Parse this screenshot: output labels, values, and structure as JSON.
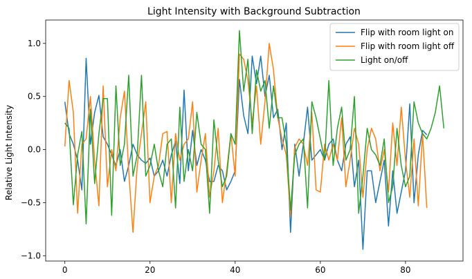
{
  "chart_data": {
    "type": "line",
    "title": "Light Intensity with Background Subtraction",
    "xlabel": "",
    "ylabel": "Relative Light Intensity",
    "xlim": [
      -4.5,
      93.5
    ],
    "ylim": [
      -1.05,
      1.22
    ],
    "xticks": [
      0,
      20,
      40,
      60,
      80
    ],
    "yticks": [
      -1.0,
      -0.5,
      0.0,
      0.5,
      1.0
    ],
    "ytick_labels": [
      "−1.0",
      "−0.5",
      "0.0",
      "0.5",
      "1.0"
    ],
    "grid": false,
    "legend_position": "top-right",
    "series": [
      {
        "name": "Flip with room light on",
        "color": "#1f77b4",
        "x": [
          0,
          1,
          2,
          3,
          4,
          5,
          6,
          7,
          8,
          9,
          10,
          11,
          12,
          13,
          14,
          15,
          16,
          17,
          18,
          19,
          20,
          21,
          22,
          23,
          24,
          25,
          26,
          27,
          28,
          29,
          30,
          31,
          32,
          33,
          34,
          35,
          36,
          37,
          38,
          39,
          40,
          41,
          42,
          43,
          44,
          45,
          46,
          47,
          48,
          49,
          50,
          51,
          52,
          53,
          54,
          55,
          56,
          57,
          58,
          59,
          60,
          61,
          62,
          63,
          64,
          65,
          66,
          67,
          68,
          69,
          70,
          71,
          72,
          73,
          74,
          75,
          76,
          77,
          78,
          79,
          80,
          81,
          82,
          83,
          84,
          85
        ],
        "values": [
          0.45,
          0.15,
          0.05,
          -0.1,
          -0.38,
          0.86,
          0.05,
          0.35,
          0.51,
          0.12,
          0.05,
          -0.05,
          -0.15,
          0.0,
          -0.3,
          -0.15,
          0.05,
          -0.05,
          -0.1,
          -0.13,
          -0.08,
          -0.25,
          -0.2,
          -0.1,
          -0.25,
          -0.05,
          0.08,
          -0.32,
          0.56,
          -0.2,
          0.18,
          -0.15,
          0.0,
          -0.1,
          -0.3,
          -0.3,
          -0.15,
          -0.2,
          -0.38,
          -0.3,
          -0.2,
          0.66,
          0.32,
          0.15,
          0.88,
          0.62,
          0.88,
          0.5,
          0.7,
          0.3,
          0.38,
          0.0,
          0.25,
          -0.78,
          0.05,
          -0.25,
          0.05,
          0.4,
          -0.1,
          -0.05,
          0.0,
          -0.1,
          0.05,
          0.1,
          -0.1,
          -0.2,
          0.05,
          0.12,
          -0.35,
          -0.1,
          -0.94,
          -0.2,
          -0.2,
          -0.5,
          -0.3,
          -0.1,
          -0.72,
          -0.2,
          -0.6,
          -0.4,
          -0.2,
          0.43,
          -0.5,
          -0.05,
          0.18,
          0.14
        ]
      },
      {
        "name": "Flip with room light off",
        "color": "#ff7f0e",
        "x": [
          0,
          1,
          2,
          3,
          4,
          5,
          6,
          7,
          8,
          9,
          10,
          11,
          12,
          13,
          14,
          15,
          16,
          17,
          18,
          19,
          20,
          21,
          22,
          23,
          24,
          25,
          26,
          27,
          28,
          29,
          30,
          31,
          32,
          33,
          34,
          35,
          36,
          37,
          38,
          39,
          40,
          41,
          42,
          43,
          44,
          45,
          46,
          47,
          48,
          49,
          50,
          51,
          52,
          53,
          54,
          55,
          56,
          57,
          58,
          59,
          60,
          61,
          62,
          63,
          64,
          65,
          66,
          67,
          68,
          69,
          70,
          71,
          72,
          73,
          74,
          75,
          76,
          77,
          78,
          79,
          80,
          81,
          82,
          83,
          84,
          85
        ],
        "values": [
          0.03,
          0.65,
          0.35,
          -0.6,
          0.05,
          0.1,
          0.5,
          -0.1,
          -0.53,
          0.6,
          -0.35,
          0.0,
          -0.2,
          0.3,
          0.55,
          -0.2,
          -0.78,
          -0.15,
          0.15,
          0.45,
          -0.5,
          -0.25,
          -0.15,
          0.15,
          0.17,
          -0.5,
          0.15,
          -0.1,
          0.05,
          0.1,
          0.45,
          -0.4,
          -0.1,
          0.15,
          -0.45,
          -0.2,
          0.2,
          -0.5,
          -0.2,
          0.15,
          -0.25,
          0.9,
          0.85,
          0.65,
          0.25,
          0.6,
          0.05,
          0.45,
          1.0,
          0.75,
          0.3,
          0.1,
          -0.05,
          -0.63,
          0.02,
          0.1,
          0.05,
          -0.15,
          0.35,
          -0.38,
          -0.4,
          0.05,
          -0.1,
          0.05,
          -0.1,
          0.3,
          -0.35,
          -0.1,
          0.2,
          0.05,
          -0.45,
          0.0,
          0.2,
          0.1,
          -0.2,
          0.0,
          -0.4,
          0.25,
          -0.15,
          0.4,
          -0.1,
          -0.45,
          0.1,
          -0.53,
          0.15,
          -0.55
        ]
      },
      {
        "name": "Light on/off",
        "color": "#2ca02c",
        "x": [
          0,
          1,
          2,
          3,
          4,
          5,
          6,
          7,
          8,
          9,
          10,
          11,
          12,
          13,
          14,
          15,
          16,
          17,
          18,
          19,
          20,
          21,
          22,
          23,
          24,
          25,
          26,
          27,
          28,
          29,
          30,
          31,
          32,
          33,
          34,
          35,
          36,
          37,
          38,
          39,
          40,
          41,
          42,
          43,
          44,
          45,
          46,
          47,
          48,
          49,
          50,
          51,
          52,
          53,
          54,
          55,
          56,
          57,
          58,
          59,
          60,
          61,
          62,
          63,
          64,
          65,
          66,
          67,
          68,
          69,
          70,
          71,
          72,
          73,
          74,
          75,
          76,
          77,
          78,
          79,
          80,
          81,
          82,
          83,
          84,
          85,
          86,
          87,
          88,
          89
        ],
        "values": [
          0.25,
          0.2,
          -0.52,
          -0.05,
          0.17,
          -0.7,
          0.38,
          -0.32,
          0.15,
          0.48,
          0.48,
          -0.62,
          0.6,
          -0.15,
          0.05,
          0.7,
          -0.25,
          -0.05,
          0.7,
          -0.25,
          -0.15,
          0.05,
          -0.2,
          -0.35,
          0.05,
          0.1,
          -0.55,
          0.4,
          -0.3,
          0.0,
          -0.2,
          0.35,
          0.05,
          0.0,
          -0.6,
          0.28,
          -0.1,
          -0.35,
          -0.25,
          0.15,
          0.05,
          1.12,
          0.55,
          0.85,
          0.15,
          0.75,
          0.55,
          0.65,
          0.2,
          0.6,
          0.3,
          0.3,
          0.05,
          -0.57,
          -0.05,
          0.05,
          0.1,
          -0.55,
          0.45,
          0.3,
          0.1,
          -0.1,
          0.65,
          -0.15,
          0.2,
          0.4,
          -0.1,
          0.0,
          0.5,
          -0.6,
          -0.25,
          0.2,
          0.0,
          -0.05,
          -0.15,
          0.1,
          -0.5,
          -0.35,
          0.2,
          -0.15,
          -0.35,
          -0.25,
          0.45,
          0.25,
          0.15,
          0.1,
          0.2,
          0.35,
          0.6,
          0.2
        ]
      }
    ]
  }
}
